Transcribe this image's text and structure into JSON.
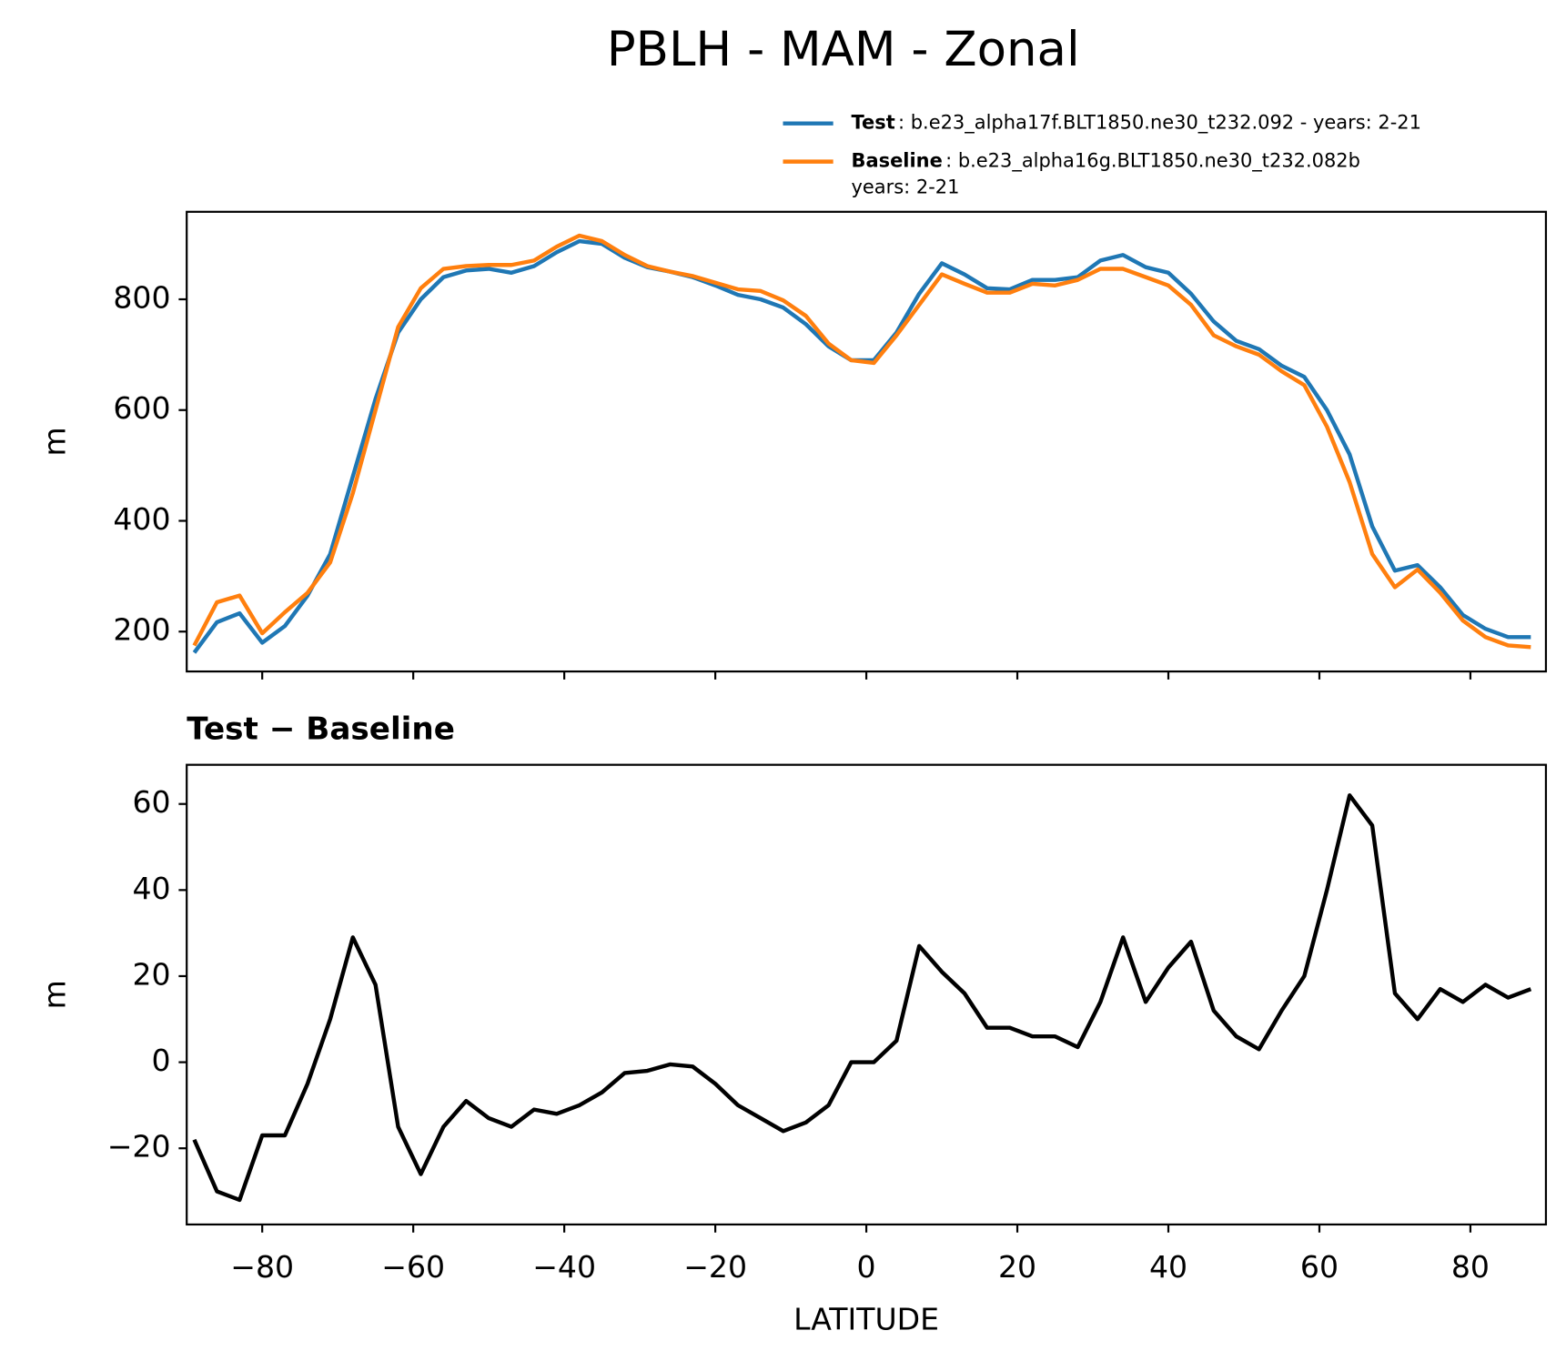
{
  "chart_data": [
    {
      "type": "line",
      "title": "PBLH - MAM - Zonal",
      "ylabel": "m",
      "x": [
        -89,
        -86,
        -83,
        -80,
        -77,
        -74,
        -71,
        -68,
        -65,
        -62,
        -59,
        -56,
        -53,
        -50,
        -47,
        -44,
        -41,
        -38,
        -35,
        -32,
        -29,
        -26,
        -23,
        -20,
        -17,
        -14,
        -11,
        -8,
        -5,
        -2,
        1,
        4,
        7,
        10,
        13,
        16,
        19,
        22,
        25,
        28,
        31,
        34,
        37,
        40,
        43,
        46,
        49,
        52,
        55,
        58,
        61,
        64,
        67,
        70,
        73,
        76,
        79,
        82,
        85,
        88
      ],
      "series": [
        {
          "name": "Test",
          "description": [
            ": b.e23_alpha17f.BLT1850.ne30_t232.092 - years: 2-21"
          ],
          "color": "#1f77b4",
          "values": [
            162,
            217,
            233,
            180,
            210,
            265,
            340,
            480,
            620,
            740,
            800,
            840,
            852,
            855,
            848,
            860,
            885,
            905,
            900,
            875,
            858,
            850,
            840,
            825,
            808,
            800,
            785,
            755,
            715,
            690,
            690,
            740,
            810,
            865,
            845,
            820,
            818,
            835,
            835,
            840,
            870,
            880,
            858,
            848,
            810,
            760,
            725,
            710,
            680,
            660,
            600,
            520,
            390,
            310,
            320,
            280,
            230,
            205,
            190,
            190
          ]
        },
        {
          "name": "Baseline",
          "description": [
            ": b.e23_alpha16g.BLT1850.ne30_t232.082b",
            "years: 2-21"
          ],
          "color": "#ff7f0e",
          "values": [
            175,
            253,
            265,
            197,
            235,
            270,
            325,
            450,
            600,
            750,
            820,
            855,
            860,
            862,
            862,
            870,
            895,
            915,
            905,
            880,
            860,
            850,
            842,
            830,
            818,
            815,
            798,
            770,
            720,
            690,
            685,
            735,
            790,
            845,
            828,
            812,
            812,
            828,
            825,
            835,
            855,
            855,
            840,
            825,
            790,
            735,
            715,
            700,
            670,
            645,
            570,
            470,
            340,
            280,
            312,
            270,
            220,
            190,
            175,
            172
          ]
        }
      ],
      "xlim": [
        -90,
        90
      ],
      "xticks": [
        -80,
        -60,
        -40,
        -20,
        0,
        20,
        40,
        60,
        80
      ],
      "xtick_labels": false,
      "ylim": [
        128,
        958
      ],
      "yticks": [
        200,
        400,
        600,
        800
      ]
    },
    {
      "type": "line",
      "title": "Test − Baseline",
      "ylabel": "m",
      "xlabel": "LATITUDE",
      "x": [
        -89,
        -86,
        -83,
        -80,
        -77,
        -74,
        -71,
        -68,
        -65,
        -62,
        -59,
        -56,
        -53,
        -50,
        -47,
        -44,
        -41,
        -38,
        -35,
        -32,
        -29,
        -26,
        -23,
        -20,
        -17,
        -14,
        -11,
        -8,
        -5,
        -2,
        1,
        4,
        7,
        10,
        13,
        16,
        19,
        22,
        25,
        28,
        31,
        34,
        37,
        40,
        43,
        46,
        49,
        52,
        55,
        58,
        61,
        64,
        67,
        70,
        73,
        76,
        79,
        82,
        85,
        88
      ],
      "series": [
        {
          "color": "#000000",
          "values": [
            -18,
            -30,
            -32,
            -17,
            -17,
            -5,
            10,
            29,
            18,
            -15,
            -26,
            -15,
            -9,
            -13,
            -15,
            -11,
            -12,
            -10,
            -7,
            -2.5,
            -2,
            -0.5,
            -1,
            -5,
            -10,
            -13,
            -16,
            -14,
            -10,
            0,
            0,
            5,
            27,
            21,
            16,
            8,
            8,
            6,
            6,
            3.5,
            14,
            29,
            14,
            22,
            28,
            12,
            6,
            3,
            12,
            20,
            40,
            62,
            55,
            16,
            10,
            17,
            14,
            18,
            15,
            17
          ]
        }
      ],
      "xlim": [
        -90,
        90
      ],
      "xticks": [
        {
          "value": -80,
          "label": "−80"
        },
        {
          "value": -60,
          "label": "−60"
        },
        {
          "value": -40,
          "label": "−40"
        },
        {
          "value": -20,
          "label": "−20"
        },
        0,
        20,
        40,
        60,
        80
      ],
      "xtick_labels": true,
      "ylim": [
        -37.7,
        69.1
      ],
      "yticks": [
        {
          "value": -20,
          "label": "−20"
        },
        0,
        20,
        40,
        60
      ]
    }
  ]
}
